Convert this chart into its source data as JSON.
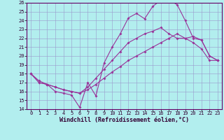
{
  "xlabel": "Windchill (Refroidissement éolien,°C)",
  "background_color": "#b2eeee",
  "grid_color": "#9999cc",
  "line_color": "#993399",
  "xlim": [
    -0.5,
    23.5
  ],
  "ylim": [
    14,
    26
  ],
  "xtick_labels": [
    "0",
    "1",
    "2",
    "3",
    "4",
    "5",
    "6",
    "7",
    "8",
    "9",
    "10",
    "11",
    "12",
    "13",
    "14",
    "15",
    "16",
    "17",
    "18",
    "19",
    "20",
    "21",
    "22",
    "23"
  ],
  "xtick_vals": [
    0,
    1,
    2,
    3,
    4,
    5,
    6,
    7,
    8,
    9,
    10,
    11,
    12,
    13,
    14,
    15,
    16,
    17,
    18,
    19,
    20,
    21,
    22,
    23
  ],
  "yticks": [
    14,
    15,
    16,
    17,
    18,
    19,
    20,
    21,
    22,
    23,
    24,
    25,
    26
  ],
  "line1_x": [
    0,
    1,
    2,
    3,
    4,
    5,
    6,
    7,
    8,
    9,
    10,
    11,
    12,
    13,
    14,
    15,
    16,
    17,
    18,
    19,
    20,
    21,
    22,
    23
  ],
  "line1_y": [
    18.0,
    17.2,
    16.8,
    16.0,
    15.8,
    15.6,
    14.2,
    17.0,
    15.5,
    19.2,
    21.0,
    22.5,
    24.3,
    24.8,
    24.2,
    25.6,
    26.3,
    26.3,
    25.8,
    24.0,
    22.0,
    21.8,
    20.0,
    19.5
  ],
  "line2_x": [
    0,
    1,
    2,
    3,
    4,
    5,
    6,
    7,
    8,
    9,
    10,
    11,
    12,
    13,
    14,
    15,
    16,
    17,
    18,
    19,
    20,
    21,
    22,
    23
  ],
  "line2_y": [
    18.0,
    17.0,
    16.8,
    16.5,
    16.2,
    16.0,
    15.8,
    16.5,
    17.5,
    18.5,
    19.5,
    20.5,
    21.5,
    22.0,
    22.5,
    22.8,
    23.2,
    22.5,
    22.0,
    22.0,
    22.2,
    21.8,
    20.0,
    19.5
  ],
  "line3_x": [
    0,
    1,
    2,
    3,
    4,
    5,
    6,
    7,
    8,
    9,
    10,
    11,
    12,
    13,
    14,
    15,
    16,
    17,
    18,
    19,
    20,
    21,
    22,
    23
  ],
  "line3_y": [
    18.0,
    17.0,
    16.8,
    16.5,
    16.2,
    16.0,
    15.8,
    16.2,
    16.8,
    17.5,
    18.2,
    18.8,
    19.5,
    20.0,
    20.5,
    21.0,
    21.5,
    22.0,
    22.5,
    22.0,
    21.5,
    20.8,
    19.5,
    19.5
  ],
  "marker": "D",
  "markersize": 2.0,
  "linewidth": 0.8,
  "tick_fontsize": 5.0,
  "label_fontsize": 6.0
}
